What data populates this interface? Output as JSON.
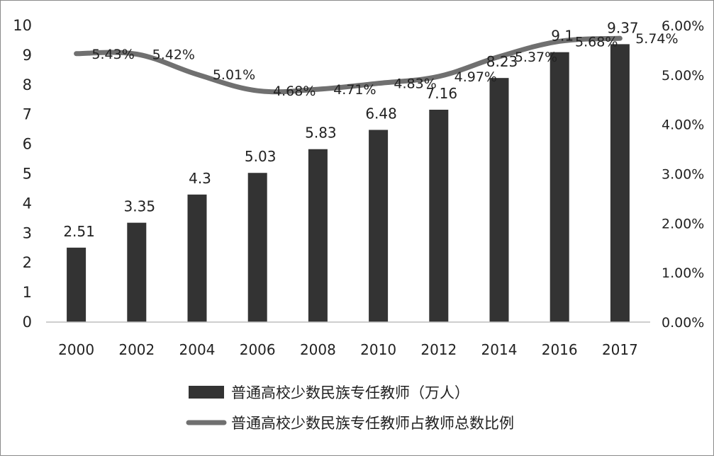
{
  "chart_data": {
    "type": "bar+line",
    "categories": [
      "2000",
      "2002",
      "2004",
      "2006",
      "2008",
      "2010",
      "2012",
      "2014",
      "2016",
      "2017"
    ],
    "series": [
      {
        "name": "普通高校少数民族专任教师（万人）",
        "type": "bar",
        "axis": "left",
        "color": "#333333",
        "values": [
          2.51,
          3.35,
          4.3,
          5.03,
          5.83,
          6.48,
          7.16,
          8.23,
          9.1,
          9.37
        ],
        "labels": [
          "2.51",
          "3.35",
          "4.3",
          "5.03",
          "5.83",
          "6.48",
          "7.16",
          "8.23",
          "9.1",
          "9.37"
        ]
      },
      {
        "name": "普通高校少数民族专任教师占教师总数比例",
        "type": "line",
        "axis": "right",
        "color": "#707070",
        "values": [
          5.43,
          5.42,
          5.01,
          4.68,
          4.71,
          4.83,
          4.97,
          5.37,
          5.68,
          5.74
        ],
        "labels": [
          "5.43%",
          "5.42%",
          "5.01%",
          "4.68%",
          "4.71%",
          "4.83%",
          "4.97%",
          "5.37%",
          "5.68%",
          "5.74%"
        ]
      }
    ],
    "y_left": {
      "min": 0,
      "max": 10,
      "ticks": [
        "0",
        "1",
        "2",
        "3",
        "4",
        "5",
        "6",
        "7",
        "8",
        "9",
        "10"
      ]
    },
    "y_right": {
      "min": 0,
      "max": 6,
      "unit": "%",
      "ticks": [
        "0.00%",
        "1.00%",
        "2.00%",
        "3.00%",
        "4.00%",
        "5.00%",
        "6.00%"
      ]
    },
    "grid": false,
    "legend_position": "bottom"
  }
}
